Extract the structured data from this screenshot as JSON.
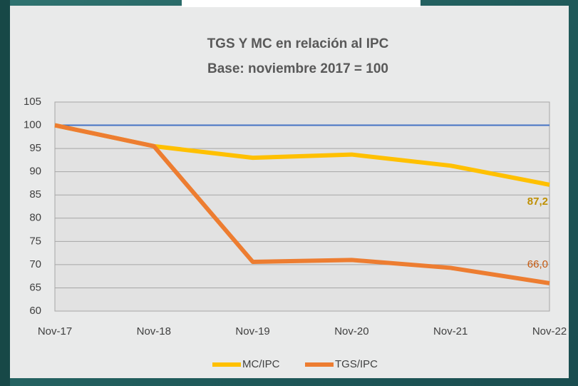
{
  "chart_data": {
    "type": "line",
    "title": "TGS Y MC en relación al IPC",
    "subtitle": "Base: noviembre 2017 = 100",
    "categories": [
      "Nov-17",
      "Nov-18",
      "Nov-19",
      "Nov-20",
      "Nov-21",
      "Nov-22"
    ],
    "series": [
      {
        "name": "MC/IPC",
        "color": "#ffc000",
        "label_color": "#bf8f00",
        "values": [
          100,
          95.5,
          93,
          93.7,
          91.3,
          87.2
        ],
        "value_labels": [
          null,
          null,
          null,
          null,
          null,
          "87,2"
        ]
      },
      {
        "name": "TGS/IPC",
        "color": "#ed7d31",
        "label_color": "#c55a11",
        "values": [
          100,
          95.5,
          70.6,
          71,
          69.3,
          66.0
        ],
        "value_labels": [
          null,
          null,
          null,
          null,
          null,
          "66,0"
        ]
      }
    ],
    "reference_line": {
      "value": 100,
      "color": "#4472c4"
    },
    "ylim": [
      60,
      105
    ],
    "yticks": [
      60,
      65,
      70,
      75,
      80,
      85,
      90,
      95,
      100,
      105
    ],
    "grid": true,
    "legend": "bottom"
  }
}
